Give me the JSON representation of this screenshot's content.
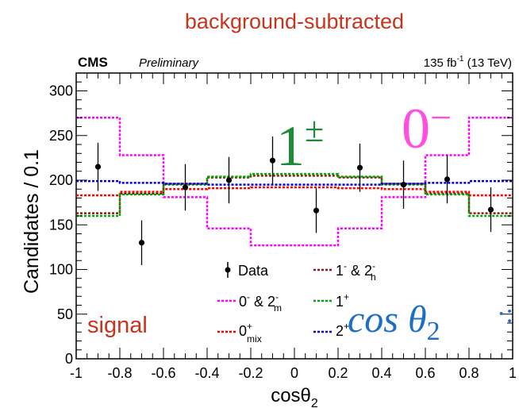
{
  "chart_data": {
    "type": "step",
    "header_title": "background-subtracted",
    "experiment": "CMS",
    "status": "Preliminary",
    "luminosity": "135 fb",
    "luminosity_exp": "-1",
    "energy": "(13 TeV)",
    "xlabel": "cosθ",
    "xlabel_sub": "2",
    "ylabel": "Candidates / 0.1",
    "xlim": [
      -1,
      1
    ],
    "ylim": [
      0,
      320
    ],
    "x_ticks": [
      "-1",
      "-0.8",
      "-0.6",
      "-0.4",
      "-0.2",
      "0",
      "0.2",
      "0.4",
      "0.6",
      "0.8",
      "1"
    ],
    "y_ticks": [
      "0",
      "50",
      "100",
      "150",
      "200",
      "250",
      "300"
    ],
    "bin_edges": [
      -1,
      -0.8,
      -0.6,
      -0.4,
      -0.2,
      0,
      0.2,
      0.4,
      0.6,
      0.8,
      1
    ],
    "data": {
      "name": "Data",
      "x": [
        -0.9,
        -0.7,
        -0.5,
        -0.3,
        -0.1,
        0.1,
        0.3,
        0.5,
        0.7,
        0.9
      ],
      "y": [
        215,
        130,
        192,
        200,
        222,
        166,
        214,
        195,
        201,
        167
      ],
      "err": [
        27,
        25,
        26,
        26,
        27,
        25,
        27,
        27,
        27,
        25
      ]
    },
    "series": [
      {
        "name": "0⁻ & 2⁻m",
        "color": "#ff00ff",
        "values": [
          270,
          228,
          181,
          146,
          127,
          127,
          146,
          181,
          228,
          270
        ]
      },
      {
        "name": "0⁺mix",
        "color": "#ff0000",
        "values": [
          183,
          187,
          190,
          191,
          192,
          192,
          191,
          190,
          187,
          183
        ]
      },
      {
        "name": "1⁻ & 2⁻h",
        "color": "#8b1a1a",
        "values": [
          163,
          185,
          196,
          203,
          205,
          205,
          203,
          196,
          185,
          163
        ]
      },
      {
        "name": "1⁺",
        "color": "#00aa00",
        "values": [
          160,
          184,
          195,
          204,
          207,
          207,
          204,
          195,
          184,
          160
        ]
      },
      {
        "name": "2⁺",
        "color": "#0000dd",
        "values": [
          199,
          197,
          196,
          195,
          195,
          195,
          195,
          196,
          197,
          199
        ]
      }
    ],
    "legend": [
      {
        "label": "Data",
        "sup": "",
        "sub": ""
      },
      {
        "label": "1",
        "sup": "-",
        "sub": "",
        "label2": " & 2",
        "sup2": "-",
        "sub2": "h"
      },
      {
        "label": "0",
        "sup": "-",
        "sub": "",
        "label2": " & 2",
        "sup2": "-",
        "sub2": "m"
      },
      {
        "label": "1",
        "sup": "+",
        "sub": ""
      },
      {
        "label": "0",
        "sup": "+",
        "sub": "mix"
      },
      {
        "label": "2",
        "sup": "+",
        "sub": ""
      }
    ],
    "annotations": {
      "one_pm": "1",
      "one_pm_sup": "±",
      "zero_minus": "0",
      "zero_minus_sup": "−",
      "signal": "signal",
      "cos_theta": "cos θ",
      "cos_theta_sub": "2"
    },
    "colors": {
      "title": "#c8341e",
      "signal": "#c8341e",
      "one_pm": "#1f8a3a",
      "zero_minus": "#ff4fe0",
      "cos_theta": "#1f6fc0"
    }
  }
}
